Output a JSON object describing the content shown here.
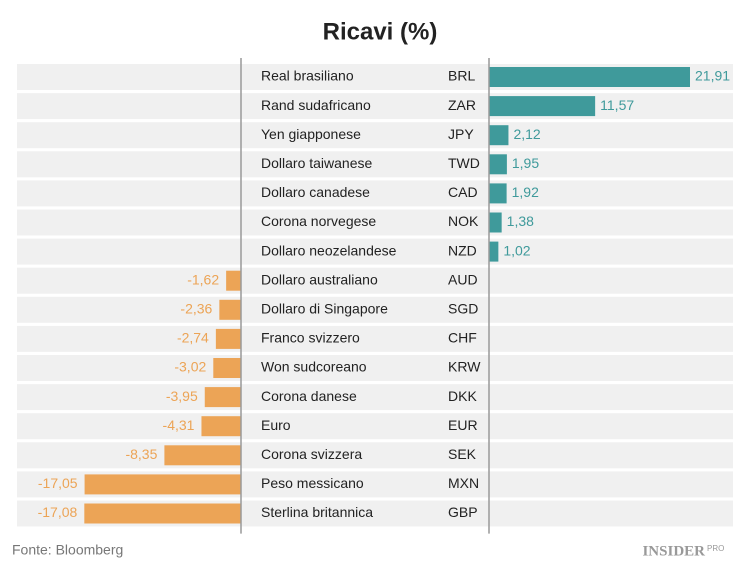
{
  "chart_data": {
    "type": "diverging-bar",
    "title": "Ricavi (%)",
    "categories": [
      "Real brasiliano",
      "Rand sudafricano",
      "Yen giapponese",
      "Dollaro taiwanese",
      "Dollaro canadese",
      "Corona norvegese",
      "Dollaro neozelandese",
      "Dollaro australiano",
      "Dollaro di Singapore",
      "Franco svizzero",
      "Won sudcoreano",
      "Corona danese",
      "Euro",
      "Corona svizzera",
      "Peso messicano",
      "Sterlina britannica"
    ],
    "codes": [
      "BRL",
      "ZAR",
      "JPY",
      "TWD",
      "CAD",
      "NOK",
      "NZD",
      "AUD",
      "SGD",
      "CHF",
      "KRW",
      "DKK",
      "EUR",
      "SEK",
      "MXN",
      "GBP"
    ],
    "values": [
      21.91,
      11.57,
      2.12,
      1.95,
      1.92,
      1.38,
      1.02,
      -1.62,
      -2.36,
      -2.74,
      -3.02,
      -3.95,
      -4.31,
      -8.35,
      -17.05,
      -17.08
    ],
    "value_labels": [
      "21,91",
      "11,57",
      "2,12",
      "1,95",
      "1,92",
      "1,38",
      "1,02",
      "-1,62",
      "-2,36",
      "-2,74",
      "-3,02",
      "-3,95",
      "-4,31",
      "-8,35",
      "-17,05",
      "-17,08"
    ],
    "positive_color": "#3f9a9b",
    "negative_color": "#eca456",
    "source": "Fonte: Bloomberg",
    "logo": "INSIDER",
    "logo_suffix": "PRO"
  }
}
